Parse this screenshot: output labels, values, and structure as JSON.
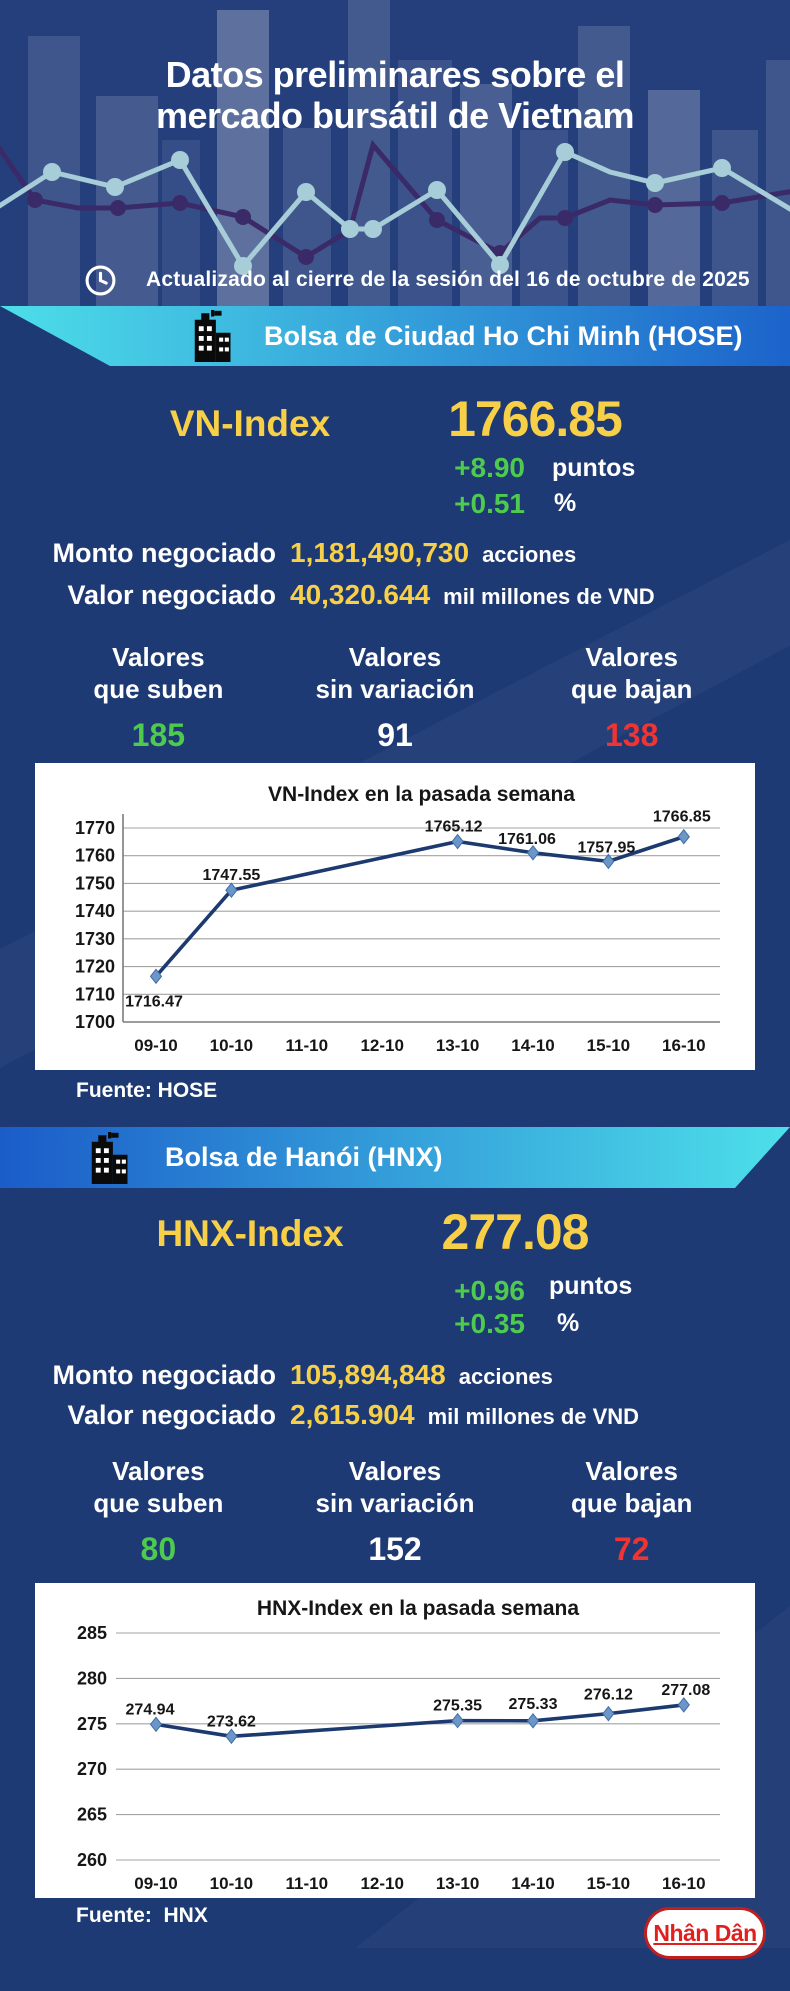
{
  "colors": {
    "navy_bg": "#1e3a74",
    "header_bg": "#253f7d",
    "yellow": "#f8d048",
    "green": "#4ecb4e",
    "red": "#ef3434",
    "banner_hose_from": "#4ddee9",
    "banner_hose_to": "#1c63cb",
    "banner_hnx_from": "#1b5cc9",
    "banner_hnx_to": "#4de0ea"
  },
  "header": {
    "title_line1": "Datos preliminares sobre el",
    "title_line2": "mercado bursátil de Vietnam",
    "updated": "Actualizado al cierre de la sesión del 16 de octubre de 2025"
  },
  "hose": {
    "banner": "Bolsa de Ciudad Ho Chi Minh (HOSE)",
    "index_label": "VN-Index",
    "index_value": "1766.85",
    "change_points": "+8.90",
    "points_unit": "puntos",
    "change_percent": "+0.51",
    "percent_unit": "%",
    "volume_label": "Monto negociado",
    "volume_value": "1,181,490,730",
    "volume_unit": "acciones",
    "value_label": "Valor negociado",
    "value_value": "40,320.644",
    "value_unit": "mil millones de VND",
    "breadth": {
      "up": {
        "line1": "Valores",
        "line2": "que suben",
        "value": "185"
      },
      "flat": {
        "line1": "Valores",
        "line2": "sin variación",
        "value": "91"
      },
      "down": {
        "line1": "Valores",
        "line2": "que bajan",
        "value": "138"
      }
    },
    "source": "Fuente: HOSE"
  },
  "hnx": {
    "banner": "Bolsa de Hanói (HNX)",
    "index_label": "HNX-Index",
    "index_value": "277.08",
    "change_points": "+0.96",
    "points_unit": "puntos",
    "change_percent": "+0.35",
    "percent_unit": "%",
    "volume_label": "Monto negociado",
    "volume_value": "105,894,848",
    "volume_unit": "acciones",
    "value_label": "Valor negociado",
    "value_value": "2,615.904",
    "value_unit": "mil millones de VND",
    "breadth": {
      "up": {
        "line1": "Valores",
        "line2": "que suben",
        "value": "80"
      },
      "flat": {
        "line1": "Valores",
        "line2": "sin variación",
        "value": "152"
      },
      "down": {
        "line1": "Valores",
        "line2": "que bajan",
        "value": "72"
      }
    },
    "source": "Fuente:  HNX"
  },
  "footer": {
    "logo_text": "Nhân Dân"
  },
  "chart_data": [
    {
      "type": "line",
      "title": "VN-Index en la pasada semana",
      "xlabel": "",
      "ylabel": "",
      "categories": [
        "09-10",
        "10-10",
        "11-10",
        "12-10",
        "13-10",
        "14-10",
        "15-10",
        "16-10"
      ],
      "ylim": [
        1700,
        1770
      ],
      "ytick_step": 10,
      "grid": true,
      "legend": "none",
      "line_color": "#1c3a6f",
      "marker_color": "#6d96c8",
      "series": [
        {
          "name": "VN-Index",
          "points": [
            {
              "x": "09-10",
              "y": 1716.47
            },
            {
              "x": "10-10",
              "y": 1747.55
            },
            {
              "x": "13-10",
              "y": 1765.12
            },
            {
              "x": "14-10",
              "y": 1761.06
            },
            {
              "x": "15-10",
              "y": 1757.95
            },
            {
              "x": "16-10",
              "y": 1766.85
            }
          ]
        }
      ]
    },
    {
      "type": "line",
      "title": "HNX-Index en la pasada semana",
      "xlabel": "",
      "ylabel": "",
      "categories": [
        "09-10",
        "10-10",
        "11-10",
        "12-10",
        "13-10",
        "14-10",
        "15-10",
        "16-10"
      ],
      "ylim": [
        260,
        285
      ],
      "ytick_step": 5,
      "grid": true,
      "legend": "none",
      "line_color": "#1c3a6f",
      "marker_color": "#6d96c8",
      "series": [
        {
          "name": "HNX-Index",
          "points": [
            {
              "x": "09-10",
              "y": 274.94
            },
            {
              "x": "10-10",
              "y": 273.62
            },
            {
              "x": "13-10",
              "y": 275.35
            },
            {
              "x": "14-10",
              "y": 275.33
            },
            {
              "x": "15-10",
              "y": 276.12
            },
            {
              "x": "16-10",
              "y": 277.08
            }
          ]
        }
      ]
    }
  ]
}
